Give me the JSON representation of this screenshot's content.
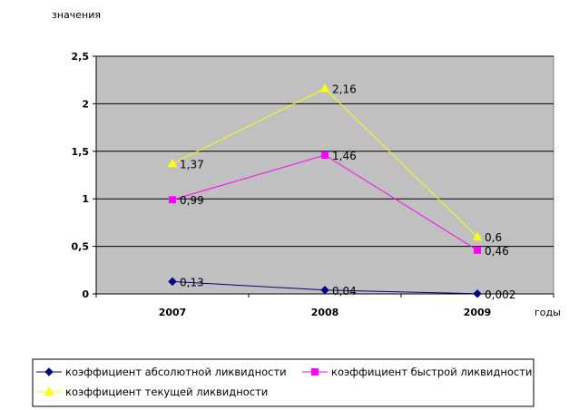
{
  "chart_data": {
    "type": "line",
    "ylabel": "значения",
    "xlabel": "годы",
    "categories": [
      "2007",
      "2008",
      "2009"
    ],
    "ylim": [
      0,
      2.5
    ],
    "yticks": [
      0,
      0.5,
      1,
      1.5,
      2,
      2.5
    ],
    "ytick_labels": [
      "0",
      "0,5",
      "1",
      "1,5",
      "2",
      "2,5"
    ],
    "grid": true,
    "legend_placement": "bottom",
    "series": [
      {
        "name": "коэффициент абсолютной ликвидности",
        "values": [
          0.13,
          0.04,
          0.002
        ],
        "labels": [
          "0,13",
          "0,04",
          "0,002"
        ],
        "color": "#000080",
        "marker": "diamond"
      },
      {
        "name": "коэффициент быстрой ликвидности",
        "values": [
          0.99,
          1.46,
          0.46
        ],
        "labels": [
          "0,99",
          "1,46",
          "0,46"
        ],
        "color": "#ff00ff",
        "marker": "square"
      },
      {
        "name": "коэффициент текущей ликвидности",
        "values": [
          1.37,
          2.16,
          0.6
        ],
        "labels": [
          "1,37",
          "2,16",
          "0,6"
        ],
        "color": "#ffff00",
        "marker": "triangle"
      }
    ],
    "colors": {
      "plot_background": "#c0c0c0",
      "gridline": "#000000"
    }
  }
}
